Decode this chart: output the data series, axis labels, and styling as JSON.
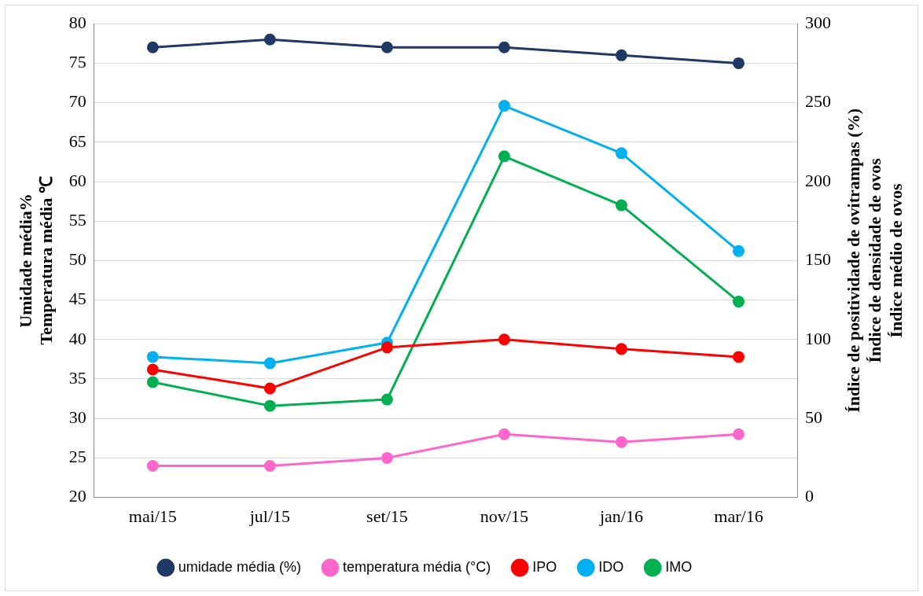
{
  "chart_data": {
    "type": "line",
    "categories": [
      "mai/15",
      "jul/15",
      "set/15",
      "nov/15",
      "jan/16",
      "mar/16"
    ],
    "ylabel": "Umidade média%\nTemperatura média ℃",
    "y2label": "Índice de positividade de ovitrampas (%)\nÍndice de densidade de ovos\nÍndice médio de ovos",
    "ylim": [
      20,
      80
    ],
    "yticks": [
      20,
      25,
      30,
      35,
      40,
      45,
      50,
      55,
      60,
      65,
      70,
      75,
      80
    ],
    "y2lim": [
      0,
      300
    ],
    "y2ticks": [
      0,
      50,
      100,
      150,
      200,
      250,
      300
    ],
    "grid": "y",
    "legend": "bottom",
    "marker": "circle",
    "line_style": "solid",
    "series": [
      {
        "name": "umidade média (%)",
        "color": "#1f3864",
        "values": [
          77,
          78,
          77,
          77,
          76,
          75
        ]
      },
      {
        "name": "temperatura média (°C)",
        "color": "#ff66cc",
        "values": [
          24,
          24,
          25,
          28,
          27,
          28
        ]
      },
      {
        "name": "IPO",
        "color": "#ff0000",
        "axis": "y2",
        "values": [
          81,
          69,
          95,
          100,
          94,
          89
        ]
      },
      {
        "name": "IDO",
        "color": "#00b0f0",
        "axis": "y2",
        "values": [
          89,
          85,
          98,
          248,
          218,
          156
        ]
      },
      {
        "name": "IMO",
        "color": "#00b050",
        "axis": "y2",
        "values": [
          73,
          58,
          62,
          216,
          185,
          124
        ]
      }
    ]
  }
}
